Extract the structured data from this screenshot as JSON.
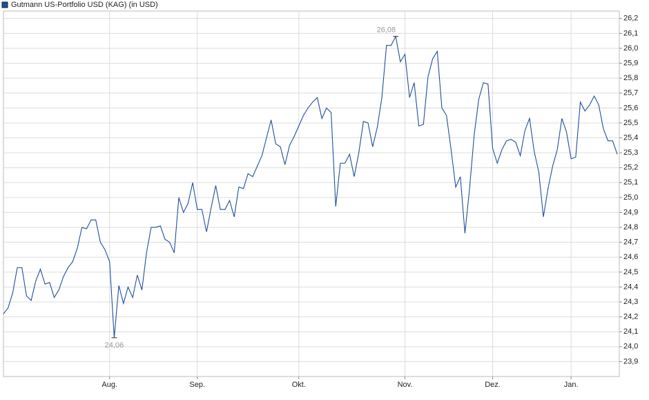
{
  "chart_data": {
    "type": "line",
    "legend_position": "top-left",
    "grid": true,
    "categories": [
      null,
      null,
      null,
      null,
      null,
      null,
      null,
      null,
      null,
      null,
      null,
      null,
      null,
      null,
      null,
      null,
      null,
      null,
      null,
      null,
      null,
      null,
      null,
      "Aug.",
      null,
      null,
      null,
      null,
      null,
      null,
      null,
      null,
      null,
      null,
      null,
      null,
      null,
      null,
      null,
      null,
      null,
      null,
      "Sep.",
      null,
      null,
      null,
      null,
      null,
      null,
      null,
      null,
      null,
      null,
      null,
      null,
      null,
      null,
      null,
      null,
      null,
      null,
      null,
      null,
      null,
      "Okt.",
      null,
      null,
      null,
      null,
      null,
      null,
      null,
      null,
      null,
      null,
      null,
      null,
      null,
      null,
      null,
      null,
      null,
      null,
      null,
      null,
      null,
      null,
      "Nov.",
      null,
      null,
      null,
      null,
      null,
      null,
      null,
      null,
      null,
      null,
      null,
      null,
      null,
      null,
      null,
      null,
      null,
      null,
      "Dez.",
      null,
      null,
      null,
      null,
      null,
      null,
      null,
      null,
      null,
      null,
      null,
      null,
      null,
      null,
      null,
      null,
      "Jan.",
      null,
      null,
      null,
      null,
      null,
      null,
      null,
      null,
      null,
      null
    ],
    "series": [
      {
        "name": "Gutmann US-Portfolio USD (KAG) (in USD)",
        "color": "#1f4e9c",
        "values": [
          24.22,
          24.26,
          24.36,
          24.53,
          24.53,
          24.34,
          24.31,
          24.44,
          24.52,
          24.42,
          24.43,
          24.33,
          24.38,
          24.47,
          24.53,
          24.57,
          24.66,
          24.8,
          24.79,
          24.85,
          24.85,
          24.7,
          24.65,
          24.57,
          24.06,
          24.41,
          24.29,
          24.4,
          24.33,
          24.48,
          24.38,
          24.63,
          24.8,
          24.8,
          24.81,
          24.72,
          24.7,
          24.63,
          25.0,
          24.9,
          24.96,
          25.1,
          24.92,
          24.92,
          24.77,
          24.93,
          25.08,
          24.92,
          24.92,
          24.98,
          24.87,
          25.07,
          25.06,
          25.16,
          25.14,
          25.21,
          25.28,
          25.4,
          25.52,
          25.36,
          25.34,
          25.22,
          25.35,
          25.41,
          25.48,
          25.55,
          25.6,
          25.64,
          25.67,
          25.53,
          25.6,
          25.57,
          24.94,
          25.23,
          25.23,
          25.29,
          25.14,
          25.3,
          25.51,
          25.5,
          25.34,
          25.47,
          25.67,
          26.02,
          26.02,
          26.08,
          25.91,
          25.96,
          25.67,
          25.77,
          25.48,
          25.49,
          25.81,
          25.93,
          25.98,
          25.6,
          25.55,
          25.32,
          25.07,
          25.14,
          24.76,
          25.06,
          25.42,
          25.66,
          25.77,
          25.76,
          25.33,
          25.23,
          25.32,
          25.38,
          25.39,
          25.37,
          25.28,
          25.45,
          25.53,
          25.31,
          25.17,
          24.87,
          25.06,
          25.21,
          25.32,
          25.53,
          25.44,
          25.26,
          25.27,
          25.64,
          25.58,
          25.62,
          25.68,
          25.62,
          25.46,
          25.38,
          25.38,
          25.29
        ]
      }
    ],
    "max_label": "26,08",
    "min_label": "24,06",
    "ylim": [
      23.8,
      26.25
    ],
    "yticks": [
      {
        "value": 23.9,
        "label": "23,9"
      },
      {
        "value": 24,
        "label": "24,0"
      },
      {
        "value": 24.1,
        "label": "24,1"
      },
      {
        "value": 24.2,
        "label": "24,2"
      },
      {
        "value": 24.3,
        "label": "24,3"
      },
      {
        "value": 24.4,
        "label": "24,4"
      },
      {
        "value": 24.5,
        "label": "24,5"
      },
      {
        "value": 24.6,
        "label": "24,6"
      },
      {
        "value": 24.7,
        "label": "24,7"
      },
      {
        "value": 24.8,
        "label": "24,8"
      },
      {
        "value": 24.9,
        "label": "24,9"
      },
      {
        "value": 25,
        "label": "25,0"
      },
      {
        "value": 25.1,
        "label": "25,1"
      },
      {
        "value": 25.2,
        "label": "25,2"
      },
      {
        "value": 25.3,
        "label": "25,3"
      },
      {
        "value": 25.4,
        "label": "25,4"
      },
      {
        "value": 25.5,
        "label": "25,5"
      },
      {
        "value": 25.6,
        "label": "25,6"
      },
      {
        "value": 25.7,
        "label": "25,7"
      },
      {
        "value": 25.8,
        "label": "25,8"
      },
      {
        "value": 25.9,
        "label": "25,9"
      },
      {
        "value": 26,
        "label": "26,0"
      },
      {
        "value": 26.1,
        "label": "26,1"
      },
      {
        "value": 26.2,
        "label": "26,2"
      }
    ]
  }
}
